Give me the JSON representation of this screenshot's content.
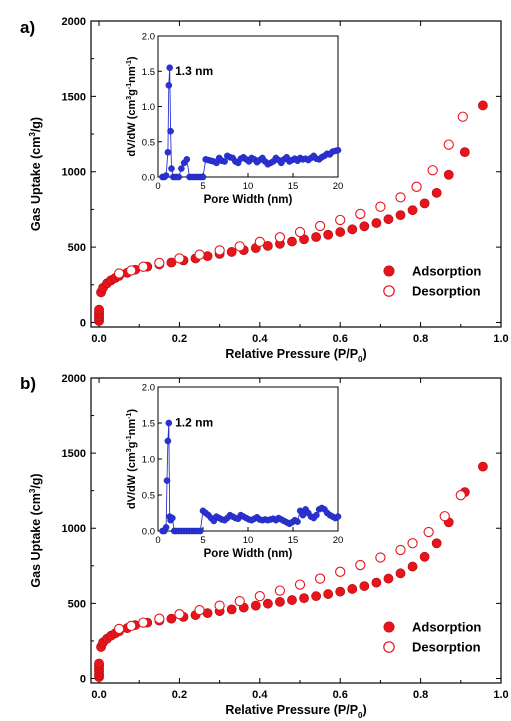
{
  "colors": {
    "filled": "#e8141c",
    "open": "#e8141c",
    "inset": "#2a32d6",
    "axis": "#000000"
  },
  "chart_data": [
    {
      "panel_label": "a)",
      "type": "scatter",
      "xlabel_main": "Relative Pressure (P/P",
      "xlabel_sub": "0",
      "xlabel_close": ")",
      "ylabel_main": "Gas Uptake (cm",
      "ylabel_sup": "3",
      "ylabel_close": "/g)",
      "xlim": [
        -0.02,
        1.0
      ],
      "ylim": [
        -30,
        2000
      ],
      "x_ticks": [
        0.0,
        0.2,
        0.4,
        0.6,
        0.8,
        1.0
      ],
      "x_tick_labels": [
        "0.0",
        "0.2",
        "0.4",
        "0.6",
        "0.8",
        "1.0"
      ],
      "y_ticks": [
        0,
        500,
        1000,
        1500,
        2000
      ],
      "y_tick_labels": [
        "0",
        "500",
        "1000",
        "1500",
        "2000"
      ],
      "legend": {
        "items": [
          "Adsorption",
          "Desorption"
        ],
        "placement": "bottom-right"
      },
      "series": [
        {
          "name": "Adsorption",
          "marker": "filled-circle",
          "x": [
            0.0,
            0.0,
            0.0,
            0.0,
            0.0,
            0.0,
            0.005,
            0.01,
            0.02,
            0.03,
            0.04,
            0.05,
            0.07,
            0.09,
            0.12,
            0.15,
            0.18,
            0.21,
            0.24,
            0.27,
            0.3,
            0.33,
            0.36,
            0.39,
            0.42,
            0.45,
            0.48,
            0.51,
            0.54,
            0.57,
            0.6,
            0.63,
            0.66,
            0.69,
            0.72,
            0.75,
            0.78,
            0.81,
            0.84,
            0.87,
            0.91,
            0.955
          ],
          "y": [
            10,
            25,
            40,
            55,
            70,
            85,
            200,
            230,
            260,
            280,
            295,
            310,
            330,
            350,
            370,
            385,
            398,
            412,
            425,
            440,
            455,
            468,
            480,
            494,
            508,
            522,
            537,
            552,
            567,
            582,
            600,
            618,
            638,
            660,
            685,
            712,
            745,
            790,
            860,
            980,
            1130,
            1440
          ]
        },
        {
          "name": "Desorption",
          "marker": "open-circle",
          "x": [
            0.05,
            0.08,
            0.11,
            0.15,
            0.2,
            0.25,
            0.3,
            0.35,
            0.4,
            0.45,
            0.5,
            0.55,
            0.6,
            0.65,
            0.7,
            0.75,
            0.79,
            0.83,
            0.87,
            0.905
          ],
          "y": [
            325,
            345,
            370,
            395,
            425,
            450,
            478,
            505,
            535,
            565,
            600,
            640,
            680,
            720,
            768,
            830,
            900,
            1010,
            1180,
            1365
          ]
        }
      ],
      "inset": {
        "type": "line-scatter",
        "annotation": "1.3 nm",
        "xlabel": "Pore Width (nm)",
        "ylabel_parts": [
          "dV/dW (cm",
          "3",
          "g",
          "-1",
          "nm",
          "-1",
          ")"
        ],
        "xlim": [
          0,
          20
        ],
        "ylim": [
          0,
          2.0
        ],
        "x_ticks": [
          0,
          5,
          10,
          15,
          20
        ],
        "x_tick_labels": [
          "0",
          "5",
          "10",
          "15",
          "20"
        ],
        "y_ticks": [
          0.0,
          0.5,
          1.0,
          1.5,
          2.0
        ],
        "y_tick_labels": [
          "0.0",
          "0.5",
          "1.0",
          "1.5",
          "2.0"
        ],
        "x": [
          0.5,
          0.7,
          0.9,
          1.1,
          1.2,
          1.3,
          1.4,
          1.5,
          1.7,
          2.0,
          2.3,
          2.6,
          2.9,
          3.2,
          3.5,
          3.8,
          4.1,
          4.4,
          4.7,
          5.0,
          5.3,
          5.6,
          5.9,
          6.2,
          6.5,
          6.8,
          7.1,
          7.4,
          7.7,
          8.0,
          8.3,
          8.6,
          8.9,
          9.2,
          9.5,
          9.8,
          10.1,
          10.4,
          10.7,
          11.0,
          11.3,
          11.6,
          11.9,
          12.2,
          12.5,
          12.8,
          13.1,
          13.4,
          13.7,
          14.0,
          14.3,
          14.6,
          14.9,
          15.2,
          15.5,
          15.8,
          16.1,
          16.4,
          16.7,
          17.0,
          17.3,
          17.6,
          17.9,
          18.2,
          18.5,
          18.8,
          19.1,
          19.4,
          19.7,
          20.0
        ],
        "y": [
          0.0,
          0.0,
          0.02,
          0.35,
          1.3,
          1.55,
          0.65,
          0.12,
          0.0,
          0.0,
          0.0,
          0.12,
          0.2,
          0.25,
          0.0,
          0.0,
          0.0,
          0.0,
          0.0,
          0.0,
          0.25,
          0.24,
          0.23,
          0.22,
          0.2,
          0.27,
          0.23,
          0.22,
          0.3,
          0.28,
          0.27,
          0.22,
          0.2,
          0.26,
          0.28,
          0.25,
          0.22,
          0.27,
          0.25,
          0.21,
          0.24,
          0.27,
          0.22,
          0.18,
          0.2,
          0.22,
          0.27,
          0.24,
          0.2,
          0.25,
          0.28,
          0.22,
          0.24,
          0.26,
          0.23,
          0.27,
          0.25,
          0.26,
          0.24,
          0.27,
          0.3,
          0.26,
          0.25,
          0.28,
          0.3,
          0.33,
          0.32,
          0.36,
          0.37,
          0.38
        ]
      }
    },
    {
      "panel_label": "b)",
      "type": "scatter",
      "xlabel_main": "Relative Pressure (P/P",
      "xlabel_sub": "0",
      "xlabel_close": ")",
      "ylabel_main": "Gas Uptake (cm",
      "ylabel_sup": "3",
      "ylabel_close": "/g)",
      "xlim": [
        -0.02,
        1.0
      ],
      "ylim": [
        -30,
        2000
      ],
      "x_ticks": [
        0.0,
        0.2,
        0.4,
        0.6,
        0.8,
        1.0
      ],
      "x_tick_labels": [
        "0.0",
        "0.2",
        "0.4",
        "0.6",
        "0.8",
        "1.0"
      ],
      "y_ticks": [
        0,
        500,
        1000,
        1500,
        2000
      ],
      "y_tick_labels": [
        "0",
        "500",
        "1000",
        "1500",
        "2000"
      ],
      "legend": {
        "items": [
          "Adsorption",
          "Desorption"
        ],
        "placement": "bottom-right"
      },
      "series": [
        {
          "name": "Adsorption",
          "marker": "filled-circle",
          "x": [
            0.0,
            0.0,
            0.0,
            0.0,
            0.0,
            0.0,
            0.005,
            0.01,
            0.02,
            0.03,
            0.04,
            0.05,
            0.07,
            0.09,
            0.12,
            0.15,
            0.18,
            0.21,
            0.24,
            0.27,
            0.3,
            0.33,
            0.36,
            0.39,
            0.42,
            0.45,
            0.48,
            0.51,
            0.54,
            0.57,
            0.6,
            0.63,
            0.66,
            0.69,
            0.72,
            0.75,
            0.78,
            0.81,
            0.84,
            0.87,
            0.91,
            0.955
          ],
          "y": [
            10,
            25,
            45,
            65,
            85,
            100,
            210,
            240,
            265,
            285,
            300,
            315,
            335,
            355,
            372,
            385,
            398,
            410,
            422,
            435,
            448,
            460,
            472,
            485,
            498,
            510,
            522,
            535,
            548,
            562,
            578,
            596,
            615,
            638,
            665,
            700,
            745,
            810,
            900,
            1040,
            1240,
            1410
          ]
        },
        {
          "name": "Desorption",
          "marker": "open-circle",
          "x": [
            0.05,
            0.08,
            0.11,
            0.15,
            0.2,
            0.25,
            0.3,
            0.35,
            0.4,
            0.45,
            0.5,
            0.55,
            0.6,
            0.65,
            0.7,
            0.75,
            0.78,
            0.82,
            0.86,
            0.9
          ],
          "y": [
            330,
            350,
            372,
            398,
            428,
            455,
            485,
            515,
            548,
            585,
            625,
            665,
            710,
            755,
            805,
            855,
            900,
            975,
            1080,
            1220
          ]
        }
      ],
      "inset": {
        "type": "line-scatter",
        "annotation": "1.2 nm",
        "xlabel": "Pore Width (nm)",
        "ylabel_parts": [
          "dV/dW (cm",
          "3",
          "g",
          "-1",
          "nm",
          "-1",
          ")"
        ],
        "xlim": [
          0,
          20
        ],
        "ylim": [
          0,
          2.0
        ],
        "x_ticks": [
          0,
          5,
          10,
          15,
          20
        ],
        "x_tick_labels": [
          "0",
          "5",
          "10",
          "15",
          "20"
        ],
        "y_ticks": [
          0.0,
          0.5,
          1.0,
          1.5,
          2.0
        ],
        "y_tick_labels": [
          "0.0",
          "0.5",
          "1.0",
          "1.5",
          "2.0"
        ],
        "x": [
          0.5,
          0.7,
          0.9,
          1.0,
          1.1,
          1.2,
          1.3,
          1.4,
          1.6,
          1.8,
          2.0,
          2.3,
          2.6,
          2.9,
          3.2,
          3.5,
          3.8,
          4.1,
          4.4,
          4.7,
          5.0,
          5.3,
          5.6,
          5.9,
          6.2,
          6.5,
          6.8,
          7.1,
          7.4,
          7.7,
          8.0,
          8.3,
          8.6,
          8.9,
          9.2,
          9.5,
          9.8,
          10.1,
          10.4,
          10.7,
          11.0,
          11.3,
          11.6,
          11.9,
          12.2,
          12.5,
          12.8,
          13.1,
          13.4,
          13.7,
          14.0,
          14.3,
          14.6,
          14.9,
          15.2,
          15.5,
          15.8,
          16.1,
          16.4,
          16.7,
          17.0,
          17.3,
          17.6,
          17.9,
          18.2,
          18.5,
          18.8,
          19.1,
          19.4,
          19.7,
          20.0
        ],
        "y": [
          0.0,
          0.0,
          0.05,
          0.7,
          1.25,
          1.5,
          0.2,
          0.15,
          0.18,
          0.0,
          0.0,
          0.0,
          0.0,
          0.0,
          0.0,
          0.0,
          0.0,
          0.0,
          0.0,
          0.0,
          0.28,
          0.25,
          0.22,
          0.18,
          0.14,
          0.2,
          0.18,
          0.16,
          0.15,
          0.18,
          0.22,
          0.2,
          0.18,
          0.17,
          0.22,
          0.2,
          0.18,
          0.16,
          0.15,
          0.17,
          0.19,
          0.16,
          0.15,
          0.16,
          0.15,
          0.16,
          0.17,
          0.15,
          0.18,
          0.16,
          0.14,
          0.12,
          0.1,
          0.12,
          0.15,
          0.13,
          0.28,
          0.22,
          0.3,
          0.25,
          0.2,
          0.18,
          0.22,
          0.3,
          0.32,
          0.3,
          0.25,
          0.22,
          0.2,
          0.18,
          0.2
        ]
      }
    }
  ]
}
